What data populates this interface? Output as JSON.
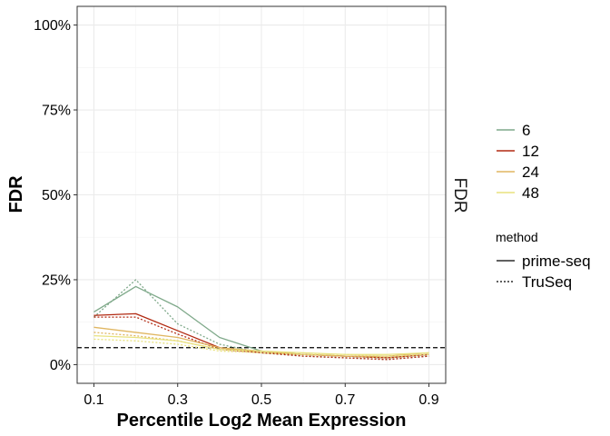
{
  "chart_data": {
    "type": "line",
    "xlabel": "Percentile Log2 Mean Expression",
    "ylabel": "FDR",
    "strip_label": "FDR",
    "xlim": [
      0.06,
      0.94
    ],
    "ylim": [
      -0.055,
      1.055
    ],
    "x_ticks": [
      0.1,
      0.3,
      0.5,
      0.7,
      0.9
    ],
    "x_tick_labels": [
      "0.1",
      "0.3",
      "0.5",
      "0.7",
      "0.9"
    ],
    "y_ticks": [
      0,
      0.25,
      0.5,
      0.75,
      1.0
    ],
    "y_tick_labels": [
      "0%",
      "25%",
      "50%",
      "75%",
      "100%"
    ],
    "grid": true,
    "reference_line": {
      "y": 0.05,
      "style": "dashed",
      "color": "#000000"
    },
    "x": [
      0.1,
      0.2,
      0.3,
      0.4,
      0.5,
      0.6,
      0.7,
      0.8,
      0.9
    ],
    "color_legend": {
      "title": "",
      "entries": [
        {
          "label": "6",
          "color": "#7fa98a"
        },
        {
          "label": "12",
          "color": "#b22a12"
        },
        {
          "label": "24",
          "color": "#e0b661"
        },
        {
          "label": "48",
          "color": "#e8e27e"
        }
      ]
    },
    "linetype_legend": {
      "title": "method",
      "entries": [
        {
          "label": "prime-seq",
          "dash": "solid"
        },
        {
          "label": "TruSeq",
          "dash": "dotted"
        }
      ]
    },
    "legend_position": "right",
    "series": [
      {
        "color_key": "6",
        "method": "prime-seq",
        "values": [
          0.155,
          0.23,
          0.17,
          0.08,
          0.04,
          0.03,
          0.025,
          0.02,
          0.03
        ]
      },
      {
        "color_key": "6",
        "method": "TruSeq",
        "values": [
          0.14,
          0.25,
          0.12,
          0.06,
          0.035,
          0.025,
          0.02,
          0.015,
          0.025
        ]
      },
      {
        "color_key": "12",
        "method": "prime-seq",
        "values": [
          0.145,
          0.15,
          0.1,
          0.05,
          0.035,
          0.03,
          0.025,
          0.02,
          0.03
        ]
      },
      {
        "color_key": "12",
        "method": "TruSeq",
        "values": [
          0.14,
          0.14,
          0.09,
          0.045,
          0.035,
          0.025,
          0.02,
          0.015,
          0.025
        ]
      },
      {
        "color_key": "24",
        "method": "prime-seq",
        "values": [
          0.11,
          0.095,
          0.08,
          0.05,
          0.04,
          0.03,
          0.025,
          0.025,
          0.035
        ]
      },
      {
        "color_key": "24",
        "method": "TruSeq",
        "values": [
          0.095,
          0.085,
          0.07,
          0.045,
          0.035,
          0.03,
          0.025,
          0.02,
          0.03
        ]
      },
      {
        "color_key": "48",
        "method": "prime-seq",
        "values": [
          0.085,
          0.08,
          0.07,
          0.045,
          0.04,
          0.035,
          0.03,
          0.03,
          0.035
        ]
      },
      {
        "color_key": "48",
        "method": "TruSeq",
        "values": [
          0.075,
          0.07,
          0.06,
          0.04,
          0.035,
          0.03,
          0.03,
          0.025,
          0.03
        ]
      }
    ]
  }
}
